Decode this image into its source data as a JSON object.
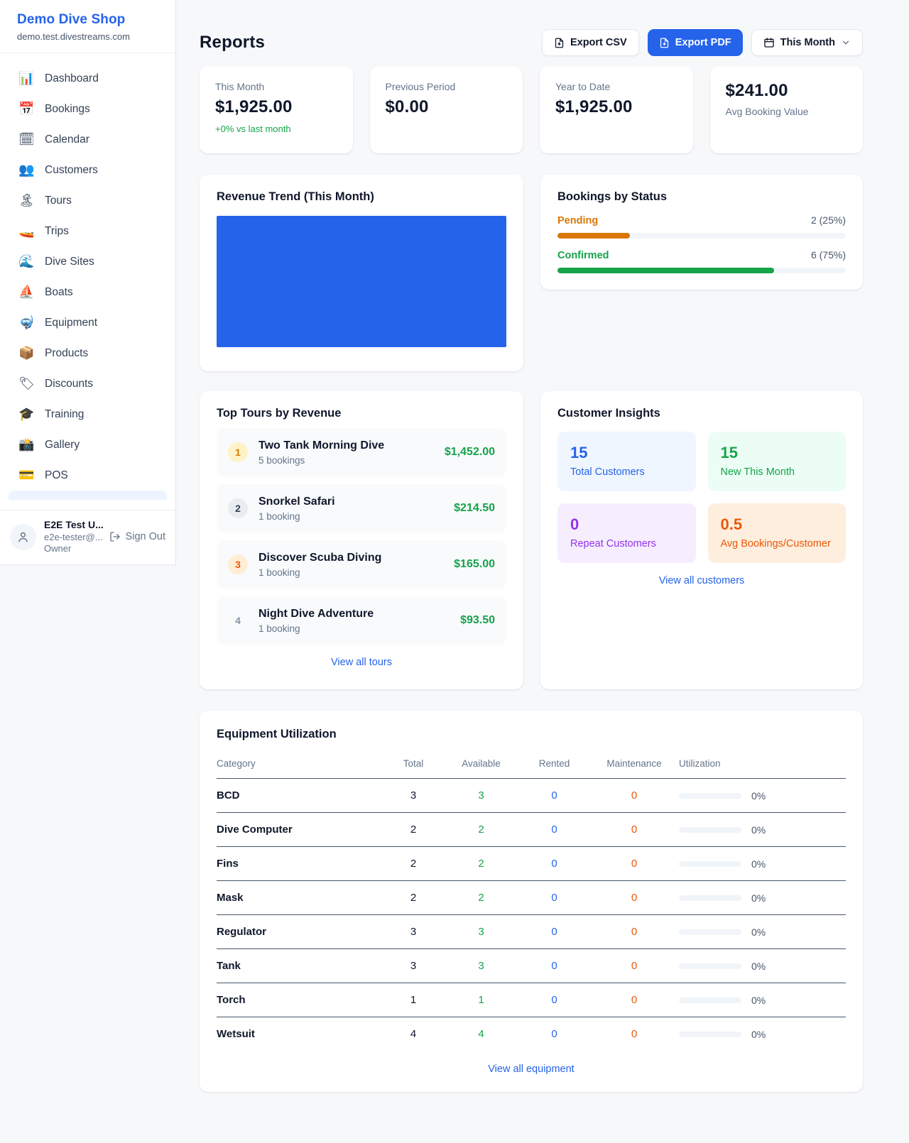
{
  "colors": {
    "accent_blue": "#2563eb",
    "green": "#16a34a",
    "orange": "#ea580c",
    "amber": "#d97706",
    "purple": "#9333ea"
  },
  "sidebar": {
    "brand": {
      "name": "Demo Dive Shop",
      "domain": "demo.test.divestreams.com"
    },
    "nav": [
      {
        "icon": "bar-chart-icon",
        "glyph": "📊",
        "label": "Dashboard"
      },
      {
        "icon": "calendar-date-icon",
        "glyph": "📅",
        "label": "Bookings"
      },
      {
        "icon": "calendar-pad-icon",
        "glyph": "🗓",
        "label": "Calendar"
      },
      {
        "icon": "people-icon",
        "glyph": "👥",
        "label": "Customers"
      },
      {
        "icon": "island-icon",
        "glyph": "🏝",
        "label": "Tours"
      },
      {
        "icon": "speedboat-icon",
        "glyph": "🚤",
        "label": "Trips"
      },
      {
        "icon": "wave-icon",
        "glyph": "🌊",
        "label": "Dive Sites"
      },
      {
        "icon": "sailboat-icon",
        "glyph": "⛵",
        "label": "Boats"
      },
      {
        "icon": "diving-mask-icon",
        "glyph": "🤿",
        "label": "Equipment"
      },
      {
        "icon": "package-icon",
        "glyph": "📦",
        "label": "Products"
      },
      {
        "icon": "tag-icon",
        "glyph": "🏷",
        "label": "Discounts"
      },
      {
        "icon": "graduation-cap-icon",
        "glyph": "🎓",
        "label": "Training"
      },
      {
        "icon": "camera-icon",
        "glyph": "📸",
        "label": "Gallery"
      },
      {
        "icon": "credit-card-icon",
        "glyph": "💳",
        "label": "POS"
      }
    ],
    "user": {
      "name": "E2E Test U...",
      "email": "e2e-tester@...",
      "role": "Owner",
      "sign_out_label": "Sign Out"
    }
  },
  "header": {
    "title": "Reports",
    "export_csv_label": "Export CSV",
    "export_pdf_label": "Export PDF",
    "period_label": "This Month"
  },
  "stats": [
    {
      "label": "This Month",
      "value": "$1,925.00",
      "delta": "+0% vs last month"
    },
    {
      "label": "Previous Period",
      "value": "$0.00"
    },
    {
      "label": "Year to Date",
      "value": "$1,925.00"
    },
    {
      "label": "Avg Booking Value",
      "value": "$241.00"
    }
  ],
  "revenue_trend": {
    "title": "Revenue Trend (This Month)"
  },
  "bookings_by_status": {
    "title": "Bookings by Status",
    "rows": [
      {
        "label": "Pending",
        "value_text": "2 (25%)",
        "pct": 25
      },
      {
        "label": "Confirmed",
        "value_text": "6 (75%)",
        "pct": 75
      }
    ]
  },
  "top_tours": {
    "title": "Top Tours by Revenue",
    "view_all": "View all tours",
    "items": [
      {
        "rank": "1",
        "name": "Two Tank Morning Dive",
        "bookings": "5 bookings",
        "amount": "$1,452.00"
      },
      {
        "rank": "2",
        "name": "Snorkel Safari",
        "bookings": "1 booking",
        "amount": "$214.50"
      },
      {
        "rank": "3",
        "name": "Discover Scuba Diving",
        "bookings": "1 booking",
        "amount": "$165.00"
      },
      {
        "rank": "4",
        "name": "Night Dive Adventure",
        "bookings": "1 booking",
        "amount": "$93.50"
      }
    ]
  },
  "customer_insights": {
    "title": "Customer Insights",
    "view_all": "View all customers",
    "tiles": [
      {
        "value": "15",
        "label": "Total Customers"
      },
      {
        "value": "15",
        "label": "New This Month"
      },
      {
        "value": "0",
        "label": "Repeat Customers"
      },
      {
        "value": "0.5",
        "label": "Avg Bookings/Customer"
      }
    ]
  },
  "equipment": {
    "title": "Equipment Utilization",
    "view_all": "View all equipment",
    "columns": [
      "Category",
      "Total",
      "Available",
      "Rented",
      "Maintenance",
      "Utilization"
    ],
    "rows": [
      {
        "category": "BCD",
        "total": "3",
        "available": "3",
        "rented": "0",
        "maintenance": "0",
        "utilization": "0%",
        "util_pct": 0
      },
      {
        "category": "Dive Computer",
        "total": "2",
        "available": "2",
        "rented": "0",
        "maintenance": "0",
        "utilization": "0%",
        "util_pct": 0
      },
      {
        "category": "Fins",
        "total": "2",
        "available": "2",
        "rented": "0",
        "maintenance": "0",
        "utilization": "0%",
        "util_pct": 0
      },
      {
        "category": "Mask",
        "total": "2",
        "available": "2",
        "rented": "0",
        "maintenance": "0",
        "utilization": "0%",
        "util_pct": 0
      },
      {
        "category": "Regulator",
        "total": "3",
        "available": "3",
        "rented": "0",
        "maintenance": "0",
        "utilization": "0%",
        "util_pct": 0
      },
      {
        "category": "Tank",
        "total": "3",
        "available": "3",
        "rented": "0",
        "maintenance": "0",
        "utilization": "0%",
        "util_pct": 0
      },
      {
        "category": "Torch",
        "total": "1",
        "available": "1",
        "rented": "0",
        "maintenance": "0",
        "utilization": "0%",
        "util_pct": 0
      },
      {
        "category": "Wetsuit",
        "total": "4",
        "available": "4",
        "rented": "0",
        "maintenance": "0",
        "utilization": "0%",
        "util_pct": 0
      }
    ]
  },
  "chart_data": [
    {
      "type": "bar",
      "title": "Bookings by Status",
      "categories": [
        "Pending",
        "Confirmed"
      ],
      "values": [
        2,
        6
      ],
      "percentages": [
        25,
        75
      ],
      "colors": [
        "#d97706",
        "#16a34a"
      ],
      "layout": "horizontal progress bars, labels left, counts right"
    },
    {
      "type": "bar",
      "title": "Top Tours by Revenue",
      "categories": [
        "Two Tank Morning Dive",
        "Snorkel Safari",
        "Discover Scuba Diving",
        "Night Dive Adventure"
      ],
      "values": [
        1452.0,
        214.5,
        165.0,
        93.5
      ],
      "bookings": [
        5,
        1,
        1,
        1
      ],
      "layout": "ranked list"
    },
    {
      "type": "area",
      "title": "Revenue Trend (This Month)",
      "appearance": "solid filled blue block, no visible axes or tick labels",
      "fill_color": "#2563eb"
    }
  ]
}
